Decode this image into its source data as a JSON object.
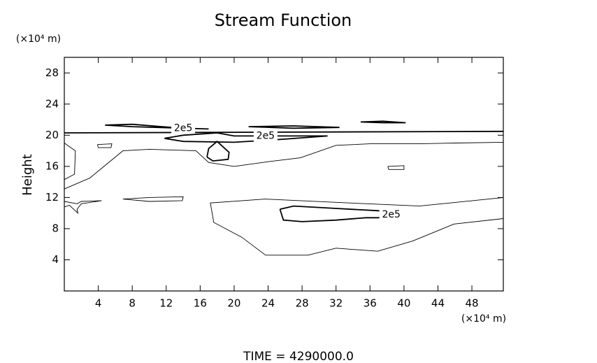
{
  "chart_data": {
    "type": "contour",
    "title": "Stream Function",
    "y_unit": "(×10⁴ m)",
    "x_unit": "(×10⁴ m)",
    "ylabel": "Height",
    "footer": "TIME = 4290000.0",
    "xlim": [
      0,
      51.7
    ],
    "ylim": [
      0,
      30
    ],
    "xticks": [
      4,
      8,
      12,
      16,
      20,
      24,
      28,
      32,
      36,
      40,
      44,
      48
    ],
    "yticks": [
      4,
      8,
      12,
      16,
      20,
      24,
      28
    ],
    "color": "#000000",
    "contours": [
      {
        "line_width": 1.8,
        "x": [
          0,
          51.7
        ],
        "y": [
          20.3,
          20.5
        ]
      },
      {
        "line_width": 0.9,
        "x": [
          0,
          3,
          6.9,
          10,
          15.5,
          17,
          20,
          24,
          27.8,
          32,
          36,
          41.8,
          46,
          51.7
        ],
        "y": [
          13.1,
          14.5,
          18,
          18.2,
          18,
          16.5,
          16,
          16.6,
          17.1,
          18.7,
          18.9,
          18.9,
          19,
          19.1
        ]
      },
      {
        "line_width": 0.9,
        "x": [
          51.7,
          45.9,
          41,
          36.9,
          32,
          28.7,
          23.7,
          20.9,
          17.6,
          17.2,
          23.7,
          33.6,
          41.8,
          51.7
        ],
        "y": [
          9.3,
          8.6,
          6.4,
          5.1,
          5.5,
          4.6,
          4.6,
          6.9,
          8.8,
          11.3,
          11.8,
          11.3,
          10.9,
          12
        ]
      },
      {
        "line_width": 1.8,
        "x": [
          25.4,
          27,
          32,
          37,
          38.5,
          37,
          35.5,
          32,
          28,
          25.8,
          25.4
        ],
        "y": [
          10.5,
          10.9,
          10.6,
          10.3,
          9.8,
          9.4,
          9.4,
          9.1,
          8.9,
          9.1,
          10.5
        ],
        "level": 200000,
        "level_label": "2e5"
      },
      {
        "line_width": 1.8,
        "x": [
          16.8,
          17,
          18,
          19.4,
          19.3,
          17.5,
          16.8
        ],
        "y": [
          17.2,
          18.3,
          19.2,
          17.8,
          16.9,
          16.7,
          17.2
        ]
      },
      {
        "line_width": 1.8,
        "x": [
          4.8,
          8,
          11.5,
          14,
          17,
          14,
          8,
          4.8
        ],
        "y": [
          21.3,
          21.4,
          21.1,
          20.9,
          20.8,
          20.9,
          21.1,
          21.3
        ],
        "level": 200000,
        "level_label": "2e5"
      },
      {
        "line_width": 1.8,
        "x": [
          21.7,
          27,
          32.4,
          27,
          21.7
        ],
        "y": [
          21.1,
          21.2,
          21,
          20.9,
          21.1
        ]
      },
      {
        "line_width": 1.8,
        "x": [
          34.9,
          37.5,
          40.2,
          37.5,
          34.9
        ],
        "y": [
          21.7,
          21.8,
          21.6,
          21.6,
          21.7
        ]
      },
      {
        "line_width": 1.8,
        "x": [
          11.8,
          14,
          18,
          20,
          23.7,
          26,
          31,
          26,
          20,
          14,
          11.8
        ],
        "y": [
          19.6,
          20,
          20.3,
          19.9,
          19.9,
          19.9,
          19.9,
          19.5,
          19.1,
          19.2,
          19.6
        ],
        "level": 200000,
        "level_label": "2e5"
      },
      {
        "line_width": 0.9,
        "x": [
          3.9,
          5.6,
          5.5,
          4,
          3.9
        ],
        "y": [
          18.8,
          18.9,
          18.4,
          18.4,
          18.8
        ]
      },
      {
        "line_width": 0.9,
        "x": [
          38.1,
          40,
          40,
          38.2,
          38.1
        ],
        "y": [
          16,
          16.1,
          15.6,
          15.6,
          16
        ]
      },
      {
        "line_width": 0.9,
        "x": [
          0,
          1.3,
          1.2,
          0
        ],
        "y": [
          19,
          18,
          15,
          14.3
        ]
      },
      {
        "line_width": 0.9,
        "x": [
          0,
          1.5,
          2,
          4.4,
          2,
          1.5,
          1.6,
          0.6,
          0
        ],
        "y": [
          11.5,
          11.2,
          11.5,
          11.6,
          11.2,
          10.5,
          10,
          11,
          10.8
        ]
      },
      {
        "line_width": 0.9,
        "x": [
          6.9,
          10,
          14,
          13.9,
          10,
          6.9
        ],
        "y": [
          11.8,
          12,
          12.1,
          11.6,
          11.5,
          11.8
        ]
      }
    ],
    "contour_label_at": [
      3,
      5,
      8
    ]
  }
}
